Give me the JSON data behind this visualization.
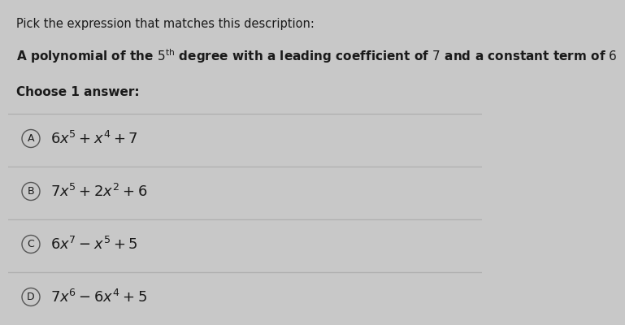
{
  "title": "Pick the expression that matches this description:",
  "description_plain": "A polynomial of the 5",
  "description_sup": "th",
  "description_rest": " degree with a leading coefficient of 7 and a constant term of 6",
  "choose_label": "Choose 1 answer:",
  "option_labels": [
    "A",
    "B",
    "C",
    "D"
  ],
  "option_formulas": [
    "$6x^5 + x^4 + 7$",
    "$7x^5 + 2x^2 + 6$",
    "$6x^7 - x^5 + 5$",
    "$7x^6 - 6x^4 + 5$"
  ],
  "bg_color": "#c8c8c8",
  "text_color": "#1a1a1a",
  "line_color": "#b0b0b0",
  "circle_edge_color": "#555555",
  "font_size_title": 10.5,
  "font_size_desc": 11,
  "font_size_choose": 11,
  "font_size_formula": 13,
  "font_size_label": 9
}
